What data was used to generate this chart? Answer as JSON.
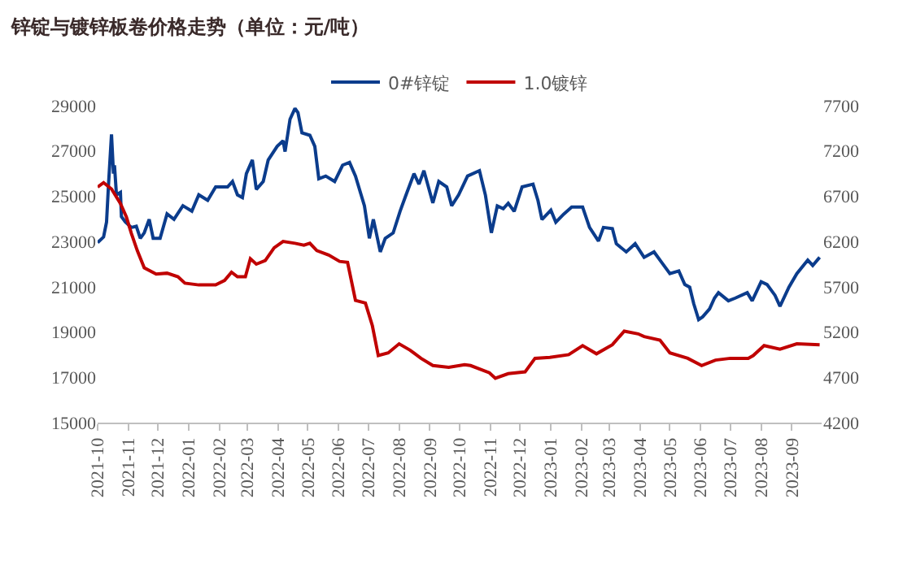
{
  "chart_data": {
    "type": "line",
    "title": "锌锭与镀锌板卷价格走势（单位：元/吨）",
    "xlim": [
      "2021-10-01",
      "2023-10-01"
    ],
    "xticks": [
      "2021-10",
      "2021-11",
      "2021-12",
      "2022-01",
      "2022-02",
      "2022-03",
      "2022-04",
      "2022-05",
      "2022-06",
      "2022-07",
      "2022-08",
      "2022-09",
      "2022-10",
      "2022-11",
      "2022-12",
      "2023-01",
      "2023-02",
      "2023-03",
      "2023-04",
      "2023-05",
      "2023-06",
      "2023-07",
      "2023-08",
      "2023-09"
    ],
    "ylim": [
      15000,
      29000
    ],
    "yticks": [
      15000,
      17000,
      19000,
      21000,
      23000,
      25000,
      27000,
      29000
    ],
    "y2lim": [
      4200,
      7700
    ],
    "y2ticks": [
      4200,
      4700,
      5200,
      5700,
      6200,
      6700,
      7200,
      7700
    ],
    "legend": "top",
    "grid": false,
    "series": [
      {
        "name": "0#锌锭",
        "color": "#0b3c8c",
        "x": [
          "2021-10-01",
          "2021-10-07",
          "2021-10-10",
          "2021-10-12",
          "2021-10-15",
          "2021-10-17",
          "2021-10-18",
          "2021-10-20",
          "2021-10-24",
          "2021-10-25",
          "2021-10-29",
          "2021-11-04",
          "2021-11-09",
          "2021-11-13",
          "2021-11-17",
          "2021-11-22",
          "2021-11-26",
          "2021-12-03",
          "2021-12-10",
          "2021-12-17",
          "2021-12-26",
          "2022-01-04",
          "2022-01-11",
          "2022-01-20",
          "2022-01-28",
          "2022-02-09",
          "2022-02-14",
          "2022-02-19",
          "2022-02-24",
          "2022-02-28",
          "2022-03-06",
          "2022-03-10",
          "2022-03-17",
          "2022-03-22",
          "2022-03-31",
          "2022-04-06",
          "2022-04-08",
          "2022-04-13",
          "2022-04-18",
          "2022-04-21",
          "2022-04-25",
          "2022-05-03",
          "2022-05-08",
          "2022-05-12",
          "2022-05-19",
          "2022-05-28",
          "2022-06-05",
          "2022-06-12",
          "2022-06-18",
          "2022-06-27",
          "2022-07-02",
          "2022-07-06",
          "2022-07-09",
          "2022-07-13",
          "2022-07-18",
          "2022-07-26",
          "2022-08-02",
          "2022-08-08",
          "2022-08-16",
          "2022-08-21",
          "2022-08-26",
          "2022-09-04",
          "2022-09-10",
          "2022-09-18",
          "2022-09-23",
          "2022-09-30",
          "2022-10-09",
          "2022-10-21",
          "2022-10-27",
          "2022-11-02",
          "2022-11-08",
          "2022-11-14",
          "2022-11-19",
          "2022-11-25",
          "2022-12-03",
          "2022-12-14",
          "2022-12-19",
          "2022-12-23",
          "2023-01-01",
          "2023-01-06",
          "2023-01-14",
          "2023-01-22",
          "2023-02-02",
          "2023-02-09",
          "2023-02-18",
          "2023-02-23",
          "2023-03-04",
          "2023-03-08",
          "2023-03-18",
          "2023-03-27",
          "2023-04-05",
          "2023-04-15",
          "2023-04-23",
          "2023-05-01",
          "2023-05-10",
          "2023-05-16",
          "2023-05-21",
          "2023-05-25",
          "2023-05-30",
          "2023-06-03",
          "2023-06-10",
          "2023-06-15",
          "2023-06-19",
          "2023-06-29",
          "2023-07-06",
          "2023-07-18",
          "2023-07-23",
          "2023-08-01",
          "2023-08-07",
          "2023-08-15",
          "2023-08-20",
          "2023-08-29",
          "2023-09-06",
          "2023-09-17",
          "2023-09-22",
          "2023-09-29"
        ],
        "values": [
          22950,
          23200,
          23860,
          25530,
          27730,
          26000,
          26370,
          25060,
          25170,
          24100,
          23860,
          23620,
          23670,
          23140,
          23380,
          23980,
          23140,
          23140,
          24220,
          23980,
          24580,
          24340,
          25060,
          24820,
          25410,
          25410,
          25650,
          25060,
          24940,
          26000,
          26600,
          25300,
          25650,
          26600,
          27200,
          27450,
          26970,
          28400,
          28880,
          28690,
          27800,
          27690,
          27200,
          25770,
          25890,
          25650,
          26370,
          26490,
          25890,
          24580,
          23140,
          23980,
          23380,
          22540,
          23140,
          23380,
          24340,
          25060,
          26000,
          25530,
          26130,
          24700,
          25650,
          25410,
          24580,
          25060,
          25890,
          26130,
          25050,
          23380,
          24570,
          24450,
          24690,
          24330,
          25410,
          25530,
          24810,
          23970,
          24380,
          23850,
          24210,
          24520,
          24520,
          23620,
          23020,
          23620,
          23570,
          22900,
          22540,
          22900,
          22300,
          22540,
          22060,
          21580,
          21700,
          21100,
          20980,
          20260,
          19550,
          19670,
          20020,
          20500,
          20740,
          20380,
          20500,
          20740,
          20380,
          21220,
          21100,
          20620,
          20140,
          20980,
          21580,
          22180,
          21940,
          22300
        ]
      },
      {
        "name": "1.0镀锌",
        "color": "#c00000",
        "axis": "y2",
        "x": [
          "2021-10-01",
          "2021-10-07",
          "2021-10-15",
          "2021-10-24",
          "2021-10-30",
          "2021-11-04",
          "2021-11-10",
          "2021-11-17",
          "2021-11-29",
          "2021-12-10",
          "2021-12-21",
          "2021-12-28",
          "2022-01-11",
          "2022-01-28",
          "2022-02-06",
          "2022-02-13",
          "2022-02-19",
          "2022-02-27",
          "2022-03-04",
          "2022-03-10",
          "2022-03-19",
          "2022-03-28",
          "2022-04-06",
          "2022-04-18",
          "2022-04-27",
          "2022-05-03",
          "2022-05-10",
          "2022-05-22",
          "2022-06-02",
          "2022-06-10",
          "2022-06-18",
          "2022-06-28",
          "2022-07-05",
          "2022-07-11",
          "2022-07-21",
          "2022-08-01",
          "2022-08-12",
          "2022-08-23",
          "2022-09-04",
          "2022-09-20",
          "2022-10-06",
          "2022-10-12",
          "2022-10-31",
          "2022-11-06",
          "2022-11-19",
          "2022-12-06",
          "2022-12-16",
          "2022-12-31",
          "2023-01-19",
          "2023-02-02",
          "2023-02-16",
          "2023-03-04",
          "2023-03-16",
          "2023-03-30",
          "2023-04-05",
          "2023-04-21",
          "2023-05-01",
          "2023-05-19",
          "2023-06-02",
          "2023-06-16",
          "2023-07-01",
          "2023-07-19",
          "2023-07-24",
          "2023-08-04",
          "2023-08-20",
          "2023-09-06",
          "2023-09-29"
        ],
        "values": [
          6800,
          6850,
          6780,
          6620,
          6470,
          6290,
          6100,
          5910,
          5840,
          5850,
          5810,
          5740,
          5720,
          5720,
          5770,
          5860,
          5810,
          5810,
          6010,
          5950,
          5990,
          6130,
          6200,
          6180,
          6160,
          6180,
          6100,
          6050,
          5980,
          5970,
          5550,
          5520,
          5270,
          4940,
          4970,
          5070,
          5000,
          4910,
          4830,
          4810,
          4840,
          4830,
          4750,
          4690,
          4740,
          4760,
          4910,
          4920,
          4950,
          5050,
          4960,
          5060,
          5210,
          5180,
          5150,
          5110,
          4970,
          4910,
          4830,
          4890,
          4910,
          4910,
          4940,
          5050,
          5010,
          5070,
          5060
        ]
      }
    ]
  }
}
